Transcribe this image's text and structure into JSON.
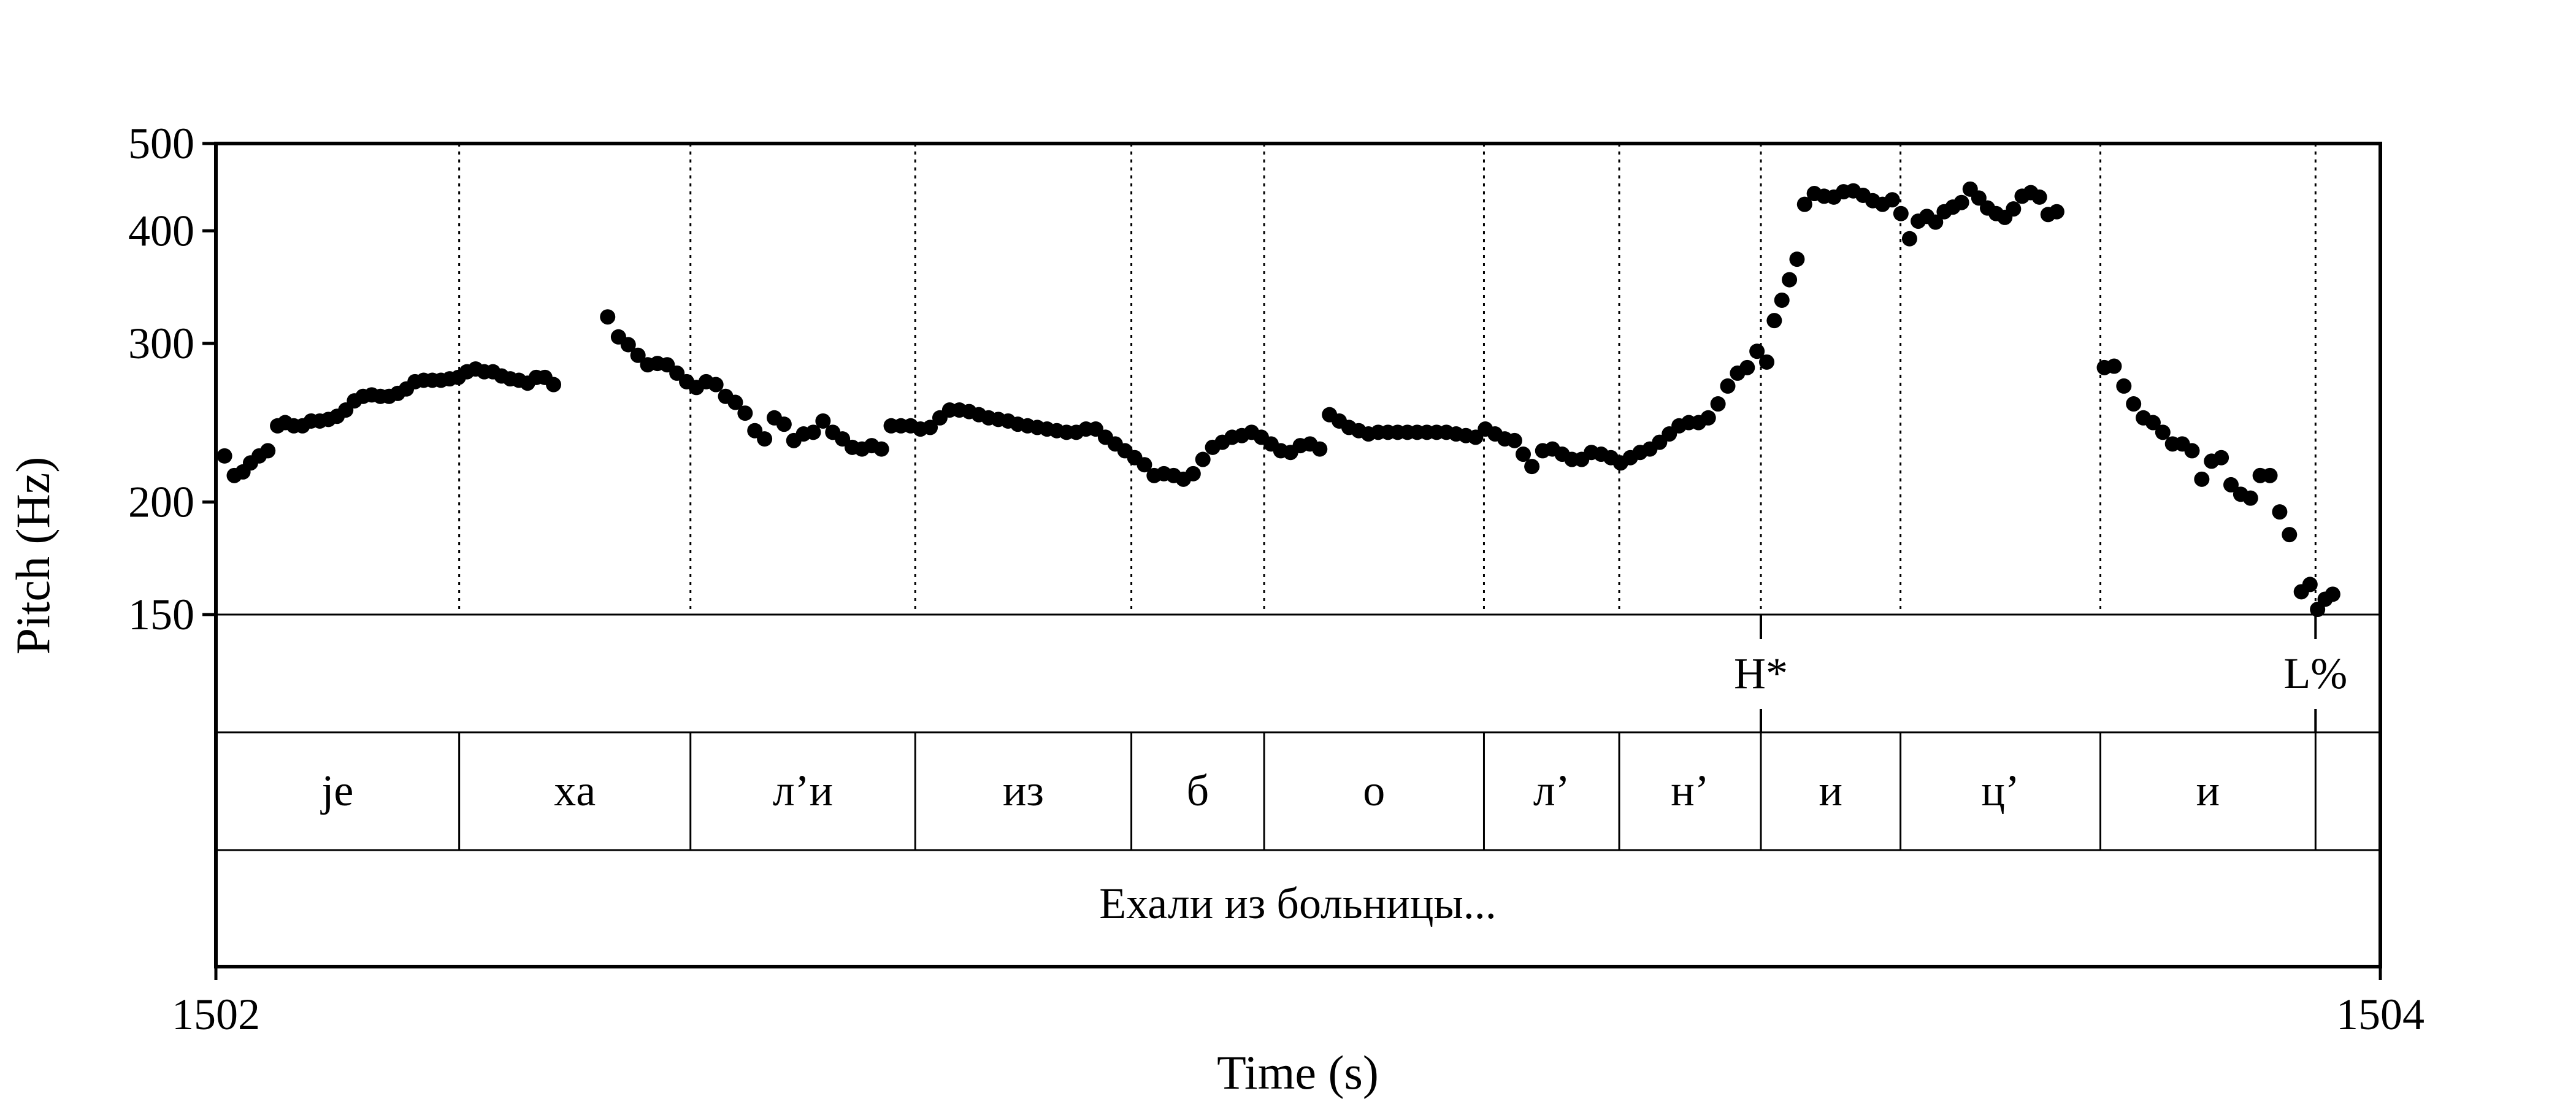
{
  "chart_data": {
    "type": "scatter",
    "ylabel": "Pitch (Hz)",
    "xlabel": "Time (s)",
    "xlim": [
      1502,
      1504
    ],
    "ylim": [
      150,
      500
    ],
    "y_scale": "log",
    "grid": false,
    "x_ticks": [
      "1502",
      "1504"
    ],
    "y_ticks": [
      {
        "value": 500,
        "label": "500"
      },
      {
        "value": 400,
        "label": "400"
      },
      {
        "value": 300,
        "label": "300"
      },
      {
        "value": 200,
        "label": "200"
      },
      {
        "value": 150,
        "label": "150"
      }
    ],
    "segment_boundaries": [
      1502.2248,
      1502.4385,
      1502.6462,
      1502.8459,
      1502.9686,
      1503.1717,
      1503.2967,
      1503.4276,
      1503.5566,
      1503.7413,
      1503.9401
    ],
    "tones": [
      {
        "time": 1503.4276,
        "label": "H*"
      },
      {
        "time": 1503.9401,
        "label": "L%"
      }
    ],
    "segments": [
      {
        "start": 1502.0,
        "end": 1502.2248,
        "label": "je"
      },
      {
        "start": 1502.2248,
        "end": 1502.4385,
        "label": "xa"
      },
      {
        "start": 1502.4385,
        "end": 1502.6462,
        "label": "л’и"
      },
      {
        "start": 1502.6462,
        "end": 1502.8459,
        "label": "из"
      },
      {
        "start": 1502.8459,
        "end": 1502.9686,
        "label": "б"
      },
      {
        "start": 1502.9686,
        "end": 1503.1717,
        "label": "о"
      },
      {
        "start": 1503.1717,
        "end": 1503.2967,
        "label": "л’"
      },
      {
        "start": 1503.2967,
        "end": 1503.4276,
        "label": "н’"
      },
      {
        "start": 1503.4276,
        "end": 1503.5566,
        "label": "и"
      },
      {
        "start": 1503.5566,
        "end": 1503.7413,
        "label": "ц’"
      },
      {
        "start": 1503.7413,
        "end": 1503.9401,
        "label": "и"
      }
    ],
    "sentence": "Ехали из больницы...",
    "series": [
      {
        "points": [
          [
            1502.008,
            225
          ],
          [
            1502.017,
            214
          ],
          [
            1502.025,
            216
          ],
          [
            1502.032,
            221
          ],
          [
            1502.04,
            225
          ],
          [
            1502.048,
            228
          ],
          [
            1502.057,
            243
          ],
          [
            1502.064,
            245
          ],
          [
            1502.072,
            243
          ],
          [
            1502.08,
            243
          ],
          [
            1502.088,
            246
          ],
          [
            1502.096,
            246
          ],
          [
            1502.104,
            247
          ],
          [
            1502.112,
            249
          ],
          [
            1502.12,
            253
          ],
          [
            1502.128,
            259
          ],
          [
            1502.136,
            262
          ],
          [
            1502.144,
            263
          ],
          [
            1502.152,
            262
          ],
          [
            1502.16,
            262
          ],
          [
            1502.168,
            264
          ],
          [
            1502.176,
            267
          ],
          [
            1502.184,
            272
          ],
          [
            1502.192,
            273
          ],
          [
            1502.2,
            273
          ],
          [
            1502.208,
            273
          ],
          [
            1502.216,
            274
          ],
          [
            1502.224,
            275
          ],
          [
            1502.232,
            279
          ],
          [
            1502.24,
            281
          ],
          [
            1502.248,
            279
          ],
          [
            1502.256,
            279
          ],
          [
            1502.264,
            276
          ],
          [
            1502.272,
            274
          ],
          [
            1502.28,
            273
          ],
          [
            1502.288,
            271
          ],
          [
            1502.296,
            275
          ],
          [
            1502.304,
            275
          ],
          [
            1502.312,
            270
          ],
          [
            1502.362,
            321
          ],
          [
            1502.372,
            305
          ],
          [
            1502.381,
            299
          ],
          [
            1502.39,
            291
          ],
          [
            1502.399,
            284
          ],
          [
            1502.408,
            285
          ],
          [
            1502.417,
            284
          ],
          [
            1502.426,
            278
          ],
          [
            1502.435,
            272
          ],
          [
            1502.444,
            268
          ],
          [
            1502.453,
            272
          ],
          [
            1502.462,
            270
          ],
          [
            1502.471,
            262
          ],
          [
            1502.48,
            258
          ],
          [
            1502.489,
            251
          ],
          [
            1502.498,
            240
          ],
          [
            1502.507,
            235
          ],
          [
            1502.516,
            248
          ],
          [
            1502.525,
            244
          ],
          [
            1502.534,
            234
          ],
          [
            1502.543,
            238
          ],
          [
            1502.552,
            239
          ],
          [
            1502.561,
            246
          ],
          [
            1502.57,
            239
          ],
          [
            1502.579,
            235
          ],
          [
            1502.588,
            230
          ],
          [
            1502.597,
            229
          ],
          [
            1502.606,
            231
          ],
          [
            1502.615,
            229
          ],
          [
            1502.624,
            243
          ],
          [
            1502.633,
            243
          ],
          [
            1502.642,
            243
          ],
          [
            1502.651,
            241
          ],
          [
            1502.66,
            242
          ],
          [
            1502.669,
            248
          ],
          [
            1502.678,
            253
          ],
          [
            1502.687,
            253
          ],
          [
            1502.696,
            252
          ],
          [
            1502.705,
            250
          ],
          [
            1502.714,
            248
          ],
          [
            1502.723,
            247
          ],
          [
            1502.732,
            246
          ],
          [
            1502.741,
            244
          ],
          [
            1502.75,
            243
          ],
          [
            1502.759,
            242
          ],
          [
            1502.768,
            241
          ],
          [
            1502.777,
            240
          ],
          [
            1502.786,
            239
          ],
          [
            1502.795,
            239
          ],
          [
            1502.804,
            241
          ],
          [
            1502.813,
            241
          ],
          [
            1502.822,
            236
          ],
          [
            1502.831,
            232
          ],
          [
            1502.84,
            228
          ],
          [
            1502.849,
            224
          ],
          [
            1502.858,
            220
          ],
          [
            1502.867,
            214
          ],
          [
            1502.876,
            215
          ],
          [
            1502.885,
            214
          ],
          [
            1502.894,
            212
          ],
          [
            1502.903,
            215
          ],
          [
            1502.912,
            223
          ],
          [
            1502.921,
            230
          ],
          [
            1502.93,
            233
          ],
          [
            1502.939,
            236
          ],
          [
            1502.948,
            237
          ],
          [
            1502.957,
            239
          ],
          [
            1502.966,
            236
          ],
          [
            1502.975,
            232
          ],
          [
            1502.984,
            228
          ],
          [
            1502.993,
            227
          ],
          [
            1503.002,
            231
          ],
          [
            1503.011,
            232
          ],
          [
            1503.02,
            229
          ],
          [
            1503.029,
            250
          ],
          [
            1503.038,
            246
          ],
          [
            1503.047,
            242
          ],
          [
            1503.056,
            240
          ],
          [
            1503.065,
            238
          ],
          [
            1503.074,
            239
          ],
          [
            1503.083,
            239
          ],
          [
            1503.092,
            239
          ],
          [
            1503.101,
            239
          ],
          [
            1503.11,
            239
          ],
          [
            1503.119,
            239
          ],
          [
            1503.128,
            239
          ],
          [
            1503.137,
            239
          ],
          [
            1503.146,
            238
          ],
          [
            1503.155,
            237
          ],
          [
            1503.164,
            236
          ],
          [
            1503.173,
            241
          ],
          [
            1503.182,
            238
          ],
          [
            1503.191,
            235
          ],
          [
            1503.2,
            234
          ],
          [
            1503.208,
            226
          ],
          [
            1503.216,
            219
          ],
          [
            1503.226,
            228
          ],
          [
            1503.235,
            229
          ],
          [
            1503.244,
            226
          ],
          [
            1503.253,
            223
          ],
          [
            1503.262,
            223
          ],
          [
            1503.271,
            227
          ],
          [
            1503.28,
            226
          ],
          [
            1503.289,
            224
          ],
          [
            1503.298,
            221
          ],
          [
            1503.307,
            224
          ],
          [
            1503.316,
            227
          ],
          [
            1503.325,
            229
          ],
          [
            1503.334,
            233
          ],
          [
            1503.343,
            238
          ],
          [
            1503.352,
            243
          ],
          [
            1503.361,
            245
          ],
          [
            1503.37,
            245
          ],
          [
            1503.379,
            248
          ],
          [
            1503.388,
            257
          ],
          [
            1503.397,
            269
          ],
          [
            1503.406,
            278
          ],
          [
            1503.415,
            282
          ],
          [
            1503.424,
            294
          ],
          [
            1503.433,
            286
          ],
          [
            1503.44,
            318
          ],
          [
            1503.447,
            335
          ],
          [
            1503.454,
            353
          ],
          [
            1503.461,
            372
          ],
          [
            1503.468,
            428
          ],
          [
            1503.477,
            440
          ],
          [
            1503.486,
            437
          ],
          [
            1503.495,
            436
          ],
          [
            1503.504,
            442
          ],
          [
            1503.513,
            443
          ],
          [
            1503.522,
            438
          ],
          [
            1503.531,
            432
          ],
          [
            1503.54,
            428
          ],
          [
            1503.549,
            433
          ],
          [
            1503.557,
            418
          ],
          [
            1503.565,
            392
          ],
          [
            1503.573,
            410
          ],
          [
            1503.581,
            415
          ],
          [
            1503.589,
            409
          ],
          [
            1503.597,
            420
          ],
          [
            1503.605,
            425
          ],
          [
            1503.613,
            430
          ],
          [
            1503.621,
            445
          ],
          [
            1503.629,
            435
          ],
          [
            1503.637,
            424
          ],
          [
            1503.645,
            418
          ],
          [
            1503.653,
            414
          ],
          [
            1503.661,
            423
          ],
          [
            1503.669,
            437
          ],
          [
            1503.677,
            441
          ],
          [
            1503.685,
            436
          ],
          [
            1503.693,
            417
          ],
          [
            1503.701,
            420
          ],
          [
            1503.745,
            282
          ],
          [
            1503.754,
            283
          ],
          [
            1503.763,
            269
          ],
          [
            1503.772,
            257
          ],
          [
            1503.781,
            248
          ],
          [
            1503.79,
            245
          ],
          [
            1503.799,
            239
          ],
          [
            1503.808,
            232
          ],
          [
            1503.817,
            232
          ],
          [
            1503.826,
            228
          ],
          [
            1503.835,
            212
          ],
          [
            1503.844,
            222
          ],
          [
            1503.853,
            224
          ],
          [
            1503.862,
            209
          ],
          [
            1503.871,
            204
          ],
          [
            1503.88,
            202
          ],
          [
            1503.889,
            214
          ],
          [
            1503.898,
            214
          ],
          [
            1503.907,
            195
          ],
          [
            1503.916,
            184
          ],
          [
            1503.927,
            159
          ],
          [
            1503.935,
            162
          ],
          [
            1503.942,
            152
          ],
          [
            1503.949,
            156
          ],
          [
            1503.956,
            158
          ]
        ]
      }
    ]
  }
}
